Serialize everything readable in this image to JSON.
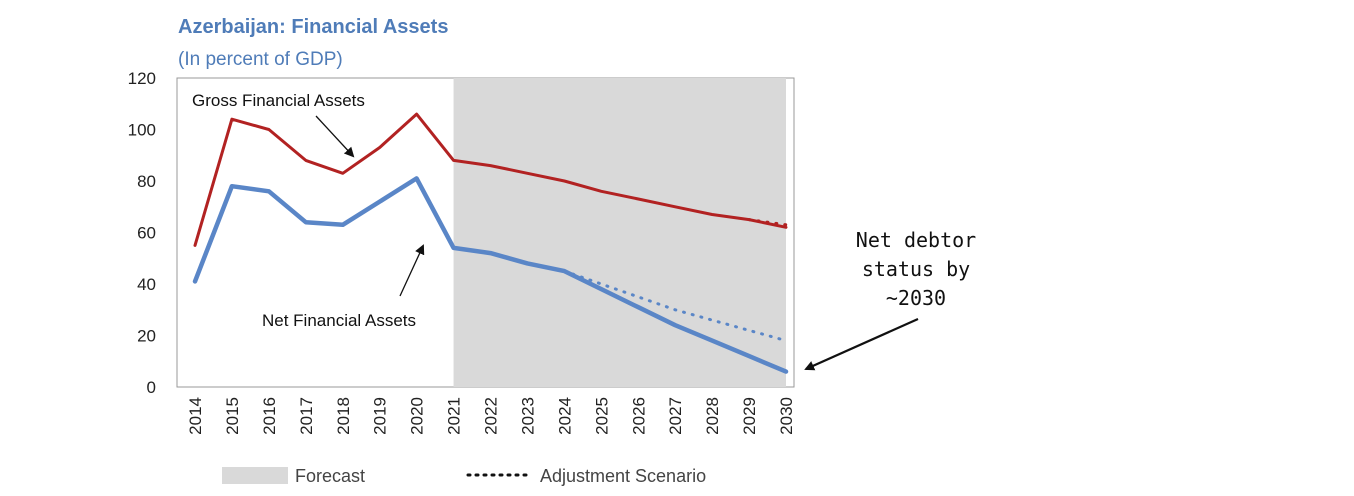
{
  "chart_data": {
    "type": "line",
    "title": "Azerbaijan: Financial Assets",
    "subtitle": "(In percent of GDP)",
    "x": [
      "2014",
      "2015",
      "2016",
      "2017",
      "2018",
      "2019",
      "2020",
      "2021",
      "2022",
      "2023",
      "2024",
      "2025",
      "2026",
      "2027",
      "2028",
      "2029",
      "2030"
    ],
    "ylim": [
      0,
      120
    ],
    "yticks": [
      0,
      20,
      40,
      60,
      80,
      100,
      120
    ],
    "forecast_start": "2021",
    "forecast_end": "2030",
    "series": [
      {
        "key": "gross",
        "color": "#b22222",
        "style": "solid",
        "values": [
          55,
          104,
          100,
          88,
          83,
          93,
          106,
          88,
          86,
          83,
          80,
          76,
          73,
          70,
          67,
          65,
          62
        ]
      },
      {
        "key": "net",
        "color": "#5a86c7",
        "style": "solid",
        "values": [
          41,
          78,
          76,
          64,
          63,
          72,
          81,
          54,
          52,
          48,
          45,
          38,
          31,
          24,
          18,
          12,
          6
        ]
      },
      {
        "key": "gross_adjustment",
        "color": "#b22222",
        "style": "dotted",
        "values": [
          null,
          null,
          null,
          null,
          null,
          null,
          null,
          null,
          null,
          null,
          null,
          null,
          null,
          null,
          null,
          65,
          63
        ]
      },
      {
        "key": "net_adjustment",
        "color": "#5a86c7",
        "style": "dotted",
        "values": [
          null,
          null,
          null,
          null,
          null,
          null,
          null,
          null,
          null,
          null,
          45,
          40,
          35,
          30,
          26,
          22,
          18
        ]
      }
    ],
    "annotations": {
      "gross_label": "Gross Financial Assets",
      "net_label": "Net Financial Assets",
      "callout_lines": [
        "Net debtor",
        "status by",
        "~2030"
      ]
    },
    "legend": {
      "placement": "bottom",
      "forecast_label": "Forecast",
      "adjustment_label": "Adjustment Scenario"
    },
    "grid": false
  }
}
